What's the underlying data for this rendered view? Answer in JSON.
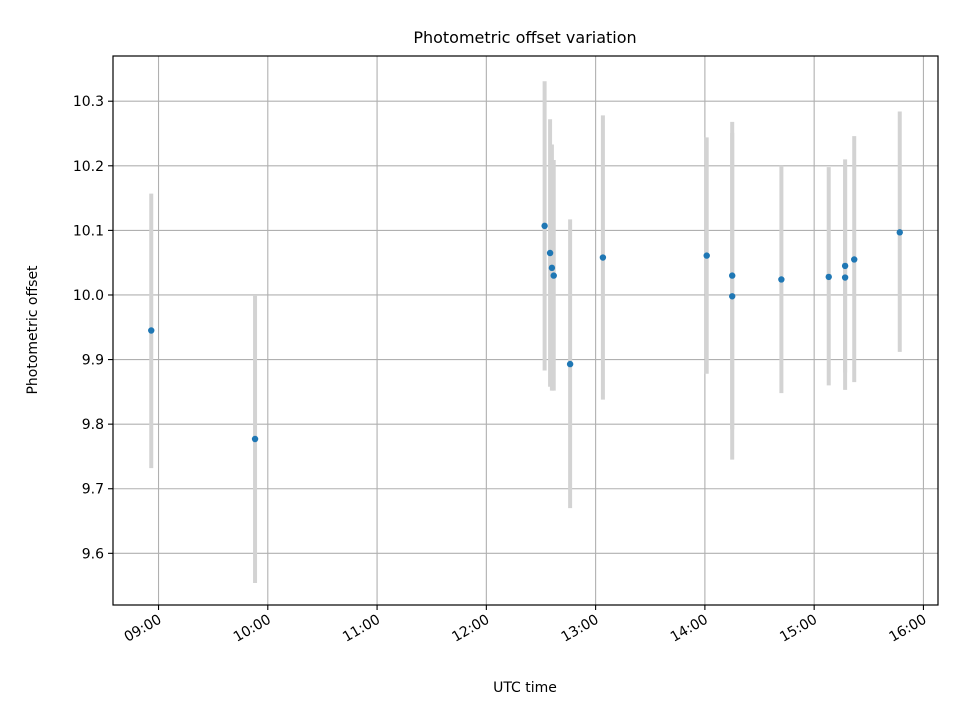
{
  "chart_data": {
    "type": "scatter",
    "title": "Photometric offset variation",
    "xlabel": "UTC time",
    "ylabel": "Photometric offset",
    "x_ticks": [
      "09:00",
      "10:00",
      "11:00",
      "12:00",
      "13:00",
      "14:00",
      "15:00",
      "16:00"
    ],
    "y_ticks": [
      "9.6",
      "9.7",
      "9.8",
      "9.9",
      "10.0",
      "10.1",
      "10.2",
      "10.3"
    ],
    "xlim": [
      "08:35",
      "16:08"
    ],
    "ylim": [
      9.52,
      10.37
    ],
    "grid": true,
    "colors": {
      "point": "#1f77b4",
      "errorbar": "#d3d3d3",
      "grid": "#b0b0b0"
    },
    "series": [
      {
        "points": [
          {
            "x": "08:56",
            "y": 9.945,
            "ylow": 9.732,
            "yhigh": 10.157
          },
          {
            "x": "09:53",
            "y": 9.777,
            "ylow": 9.554,
            "yhigh": 10.0
          },
          {
            "x": "12:32",
            "y": 10.107,
            "ylow": 9.883,
            "yhigh": 10.331
          },
          {
            "x": "12:35",
            "y": 10.065,
            "ylow": 9.858,
            "yhigh": 10.272
          },
          {
            "x": "12:36",
            "y": 10.042,
            "ylow": 9.852,
            "yhigh": 10.233
          },
          {
            "x": "12:37",
            "y": 10.03,
            "ylow": 9.852,
            "yhigh": 10.209
          },
          {
            "x": "12:46",
            "y": 9.893,
            "ylow": 9.67,
            "yhigh": 10.117
          },
          {
            "x": "13:04",
            "y": 10.058,
            "ylow": 9.838,
            "yhigh": 10.278
          },
          {
            "x": "14:01",
            "y": 10.061,
            "ylow": 9.878,
            "yhigh": 10.244
          },
          {
            "x": "14:15",
            "y": 10.03,
            "ylow": 9.792,
            "yhigh": 10.268
          },
          {
            "x": "14:15",
            "y": 9.998,
            "ylow": 9.745,
            "yhigh": 10.251
          },
          {
            "x": "14:42",
            "y": 10.024,
            "ylow": 9.848,
            "yhigh": 10.2
          },
          {
            "x": "15:08",
            "y": 10.028,
            "ylow": 9.86,
            "yhigh": 10.198
          },
          {
            "x": "15:17",
            "y": 10.045,
            "ylow": 9.88,
            "yhigh": 10.21
          },
          {
            "x": "15:17",
            "y": 10.027,
            "ylow": 9.853,
            "yhigh": 10.201
          },
          {
            "x": "15:22",
            "y": 10.055,
            "ylow": 9.865,
            "yhigh": 10.246
          },
          {
            "x": "15:47",
            "y": 10.097,
            "ylow": 9.912,
            "yhigh": 10.284
          }
        ]
      }
    ]
  }
}
